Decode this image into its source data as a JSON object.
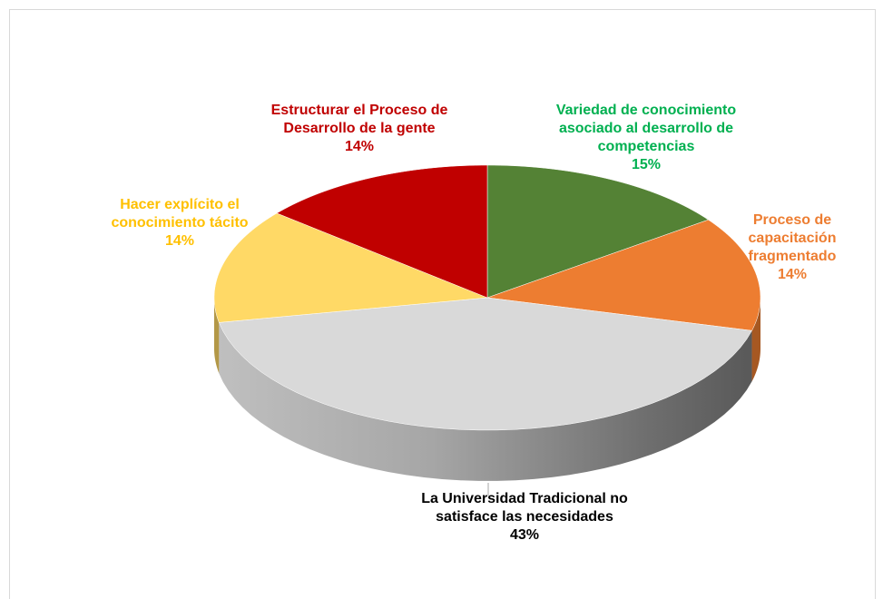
{
  "chart_data": {
    "type": "pie3d",
    "categories": [
      "Variedad de conocimiento asociado al desarrollo de competencias",
      "Proceso de capacitación fragmentado",
      "La Universidad Tradicional no satisface las necesidades",
      "Hacer explícito el conocimiento tácito",
      "Estructurar el Proceso de Desarrollo de la gente"
    ],
    "values": [
      15,
      14,
      43,
      14,
      14
    ],
    "value_labels": [
      "15%",
      "14%",
      "43%",
      "14%",
      "14%"
    ],
    "colors": [
      "#548235",
      "#ed7d31",
      "#d9d9d9",
      "#ffd966",
      "#c00000"
    ],
    "label_colors": [
      "#00b050",
      "#ed7d31",
      "#000000",
      "#ffc000",
      "#c00000"
    ]
  }
}
